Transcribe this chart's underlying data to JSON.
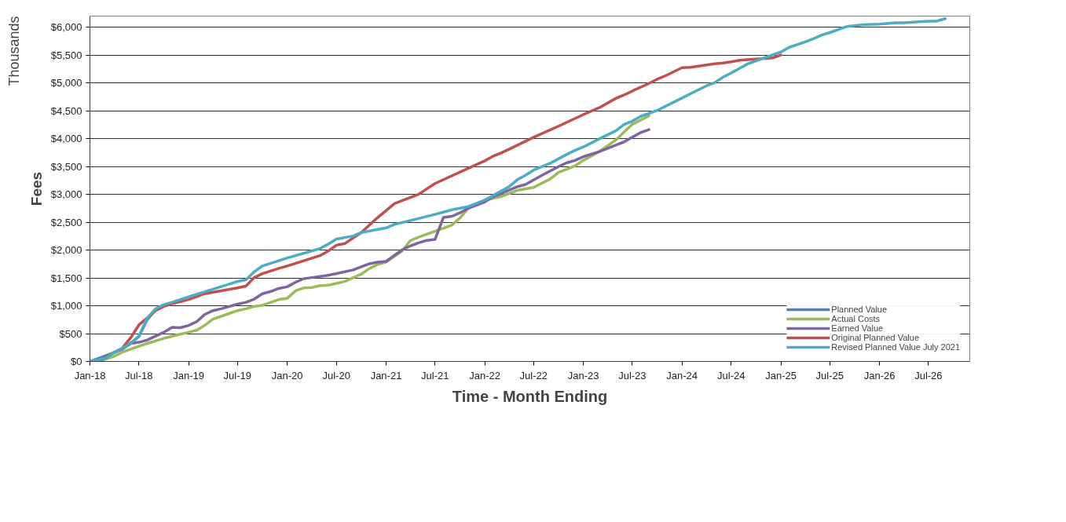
{
  "chart_data": {
    "type": "line",
    "xlabel": "Time - Month Ending",
    "ylabel": "Fees",
    "annotations": [
      "Thousands"
    ],
    "xlim": [
      "2018-01",
      "2026-12"
    ],
    "ylim": [
      0,
      6200
    ],
    "xticks": [
      {
        "value": "2018-01",
        "label": "Jan-18"
      },
      {
        "value": "2018-07",
        "label": "Jul-18"
      },
      {
        "value": "2019-01",
        "label": "Jan-19"
      },
      {
        "value": "2019-07",
        "label": "Jul-19"
      },
      {
        "value": "2020-01",
        "label": "Jan-20"
      },
      {
        "value": "2020-07",
        "label": "Jul-20"
      },
      {
        "value": "2021-01",
        "label": "Jan-21"
      },
      {
        "value": "2021-07",
        "label": "Jul-21"
      },
      {
        "value": "2022-01",
        "label": "Jan-22"
      },
      {
        "value": "2022-07",
        "label": "Jul-22"
      },
      {
        "value": "2023-01",
        "label": "Jan-23"
      },
      {
        "value": "2023-07",
        "label": "Jul-23"
      },
      {
        "value": "2024-01",
        "label": "Jan-24"
      },
      {
        "value": "2024-07",
        "label": "Jul-24"
      },
      {
        "value": "2025-01",
        "label": "Jan-25"
      },
      {
        "value": "2025-07",
        "label": "Jul-25"
      },
      {
        "value": "2026-01",
        "label": "Jan-26"
      },
      {
        "value": "2026-07",
        "label": "Jul-26"
      }
    ],
    "yticks": [
      {
        "value": 0,
        "label": "$0"
      },
      {
        "value": 500,
        "label": "$500"
      },
      {
        "value": 1000,
        "label": "$1,000"
      },
      {
        "value": 1500,
        "label": "$1,500"
      },
      {
        "value": 2000,
        "label": "$2,000"
      },
      {
        "value": 2500,
        "label": "$2,500"
      },
      {
        "value": 3000,
        "label": "$3,000"
      },
      {
        "value": 3500,
        "label": "$3,500"
      },
      {
        "value": 4000,
        "label": "$4,000"
      },
      {
        "value": 4500,
        "label": "$4,500"
      },
      {
        "value": 5000,
        "label": "$5,000"
      },
      {
        "value": 5500,
        "label": "$5,500"
      },
      {
        "value": 6000,
        "label": "$6,000"
      }
    ],
    "grid": "y",
    "legend": "bottom right",
    "marker": "none",
    "line_style": "solid",
    "series": [
      {
        "name": "Planned Value",
        "color": "#4f81bd",
        "x": [
          "2018-01",
          "2018-02",
          "2018-04",
          "2018-05",
          "2018-06",
          "2018-07",
          "2018-08",
          "2018-09",
          "2018-10"
        ],
        "values": [
          0,
          55,
          160,
          230,
          330,
          445,
          750,
          930,
          1005
        ]
      },
      {
        "name": "Actual Costs",
        "color": "#9bbb59",
        "x": [
          "2018-02",
          "2018-04",
          "2018-05",
          "2018-07",
          "2018-08",
          "2018-10",
          "2018-12",
          "2019-01",
          "2019-02",
          "2019-03",
          "2019-04",
          "2019-06",
          "2019-07",
          "2019-08",
          "2019-09",
          "2019-10",
          "2019-12",
          "2020-01",
          "2020-02",
          "2020-03",
          "2020-04",
          "2020-05",
          "2020-06",
          "2020-07",
          "2020-08",
          "2020-10",
          "2020-11",
          "2020-12",
          "2021-01",
          "2021-03",
          "2021-04",
          "2021-05",
          "2021-07",
          "2021-09",
          "2021-10",
          "2021-11",
          "2022-01",
          "2022-03",
          "2022-05",
          "2022-07",
          "2022-09",
          "2022-10",
          "2022-12",
          "2023-01",
          "2023-03",
          "2023-05",
          "2023-06",
          "2023-07",
          "2023-09"
        ],
        "values": [
          0,
          95,
          166,
          274,
          324,
          415,
          490,
          523,
          564,
          647,
          759,
          863,
          913,
          946,
          988,
          1008,
          1112,
          1133,
          1270,
          1320,
          1328,
          1361,
          1369,
          1402,
          1436,
          1568,
          1672,
          1743,
          1784,
          1983,
          2170,
          2232,
          2336,
          2448,
          2573,
          2751,
          2896,
          2959,
          3071,
          3124,
          3278,
          3394,
          3510,
          3610,
          3768,
          3975,
          4120,
          4257,
          4411
        ]
      },
      {
        "name": "Earned Value",
        "color": "#8064a2",
        "x": [
          "2018-02",
          "2018-04",
          "2018-05",
          "2018-06",
          "2018-07",
          "2018-08",
          "2018-09",
          "2018-10",
          "2018-11",
          "2018-12",
          "2019-01",
          "2019-02",
          "2019-03",
          "2019-04",
          "2019-05",
          "2019-07",
          "2019-08",
          "2019-09",
          "2019-10",
          "2019-11",
          "2019-12",
          "2020-01",
          "2020-02",
          "2020-03",
          "2020-05",
          "2020-06",
          "2020-07",
          "2020-09",
          "2020-10",
          "2020-11",
          "2020-12",
          "2021-01",
          "2021-03",
          "2021-04",
          "2021-05",
          "2021-06",
          "2021-07",
          "2021-08",
          "2021-09",
          "2021-10",
          "2021-11",
          "2022-01",
          "2022-02",
          "2022-03",
          "2022-05",
          "2022-06",
          "2022-08",
          "2022-10",
          "2022-11",
          "2022-12",
          "2023-01",
          "2023-03",
          "2023-05",
          "2023-06",
          "2023-07",
          "2023-08",
          "2023-09"
        ],
        "values": [
          0,
          165,
          220,
          324,
          344,
          386,
          456,
          523,
          614,
          606,
          647,
          718,
          842,
          913,
          946,
          1029,
          1062,
          1120,
          1216,
          1257,
          1311,
          1340,
          1423,
          1485,
          1527,
          1548,
          1577,
          1643,
          1701,
          1755,
          1784,
          1797,
          2004,
          2075,
          2129,
          2175,
          2191,
          2585,
          2606,
          2668,
          2751,
          2863,
          2959,
          3012,
          3137,
          3178,
          3344,
          3498,
          3568,
          3610,
          3676,
          3768,
          3884,
          3942,
          4025,
          4108,
          4162
        ]
      },
      {
        "name": "Original Planned Value",
        "color": "#c0504d",
        "x": [
          "2018-02",
          "2018-04",
          "2018-05",
          "2018-06",
          "2018-07",
          "2018-08",
          "2018-09",
          "2018-10",
          "2018-11",
          "2019-01",
          "2019-03",
          "2019-07",
          "2019-08",
          "2019-09",
          "2019-10",
          "2019-12",
          "2020-01",
          "2020-05",
          "2020-06",
          "2020-07",
          "2020-08",
          "2020-10",
          "2020-12",
          "2021-02",
          "2021-03",
          "2021-05",
          "2021-07",
          "2022-01",
          "2022-02",
          "2022-03",
          "2022-04",
          "2022-07",
          "2022-10",
          "2023-01",
          "2023-03",
          "2023-05",
          "2023-06",
          "2023-07",
          "2023-09",
          "2023-10",
          "2023-11",
          "2024-01",
          "2024-02",
          "2024-05",
          "2024-06",
          "2024-07",
          "2024-08",
          "2024-10",
          "2024-12",
          "2025-01"
        ],
        "values": [
          0,
          165,
          240,
          427,
          656,
          780,
          913,
          988,
          1037,
          1112,
          1216,
          1320,
          1353,
          1506,
          1577,
          1672,
          1714,
          1900,
          1983,
          2087,
          2116,
          2315,
          2585,
          2834,
          2888,
          3000,
          3195,
          3602,
          3685,
          3739,
          3809,
          4025,
          4224,
          4432,
          4556,
          4722,
          4784,
          4855,
          4992,
          5066,
          5129,
          5274,
          5282,
          5344,
          5357,
          5378,
          5407,
          5427,
          5448,
          5502
        ]
      },
      {
        "name": "Revised Planned Value July 2021",
        "color": "#4bacc6",
        "x": [
          "2018-01",
          "2018-03",
          "2018-04",
          "2018-05",
          "2018-06",
          "2018-07",
          "2018-08",
          "2018-09",
          "2018-10",
          "2018-11",
          "2019-01",
          "2019-07",
          "2019-08",
          "2019-09",
          "2019-10",
          "2020-01",
          "2020-05",
          "2020-06",
          "2020-07",
          "2020-09",
          "2020-10",
          "2021-01",
          "2021-02",
          "2021-07",
          "2021-08",
          "2021-09",
          "2021-11",
          "2022-01",
          "2022-02",
          "2022-04",
          "2022-05",
          "2022-06",
          "2022-07",
          "2022-09",
          "2022-11",
          "2022-12",
          "2023-01",
          "2023-03",
          "2023-05",
          "2023-06",
          "2023-07",
          "2023-08",
          "2023-10",
          "2024-01",
          "2024-02",
          "2024-04",
          "2024-05",
          "2024-06",
          "2024-07",
          "2024-09",
          "2025-01",
          "2025-02",
          "2025-04",
          "2025-05",
          "2025-06",
          "2025-07",
          "2025-09",
          "2025-11",
          "2026-01",
          "2026-03",
          "2026-04",
          "2026-07",
          "2026-08",
          "2026-09"
        ],
        "values": [
          0,
          60,
          165,
          240,
          325,
          456,
          780,
          946,
          1020,
          1062,
          1160,
          1436,
          1465,
          1610,
          1714,
          1859,
          2025,
          2108,
          2199,
          2253,
          2315,
          2398,
          2460,
          2640,
          2680,
          2722,
          2780,
          2896,
          2979,
          3137,
          3261,
          3344,
          3436,
          3560,
          3718,
          3788,
          3851,
          3996,
          4141,
          4253,
          4315,
          4400,
          4506,
          4730,
          4805,
          4950,
          5004,
          5104,
          5178,
          5344,
          5556,
          5640,
          5737,
          5794,
          5860,
          5904,
          6013,
          6044,
          6057,
          6079,
          6079,
          6110,
          6110,
          6154
        ]
      }
    ]
  }
}
